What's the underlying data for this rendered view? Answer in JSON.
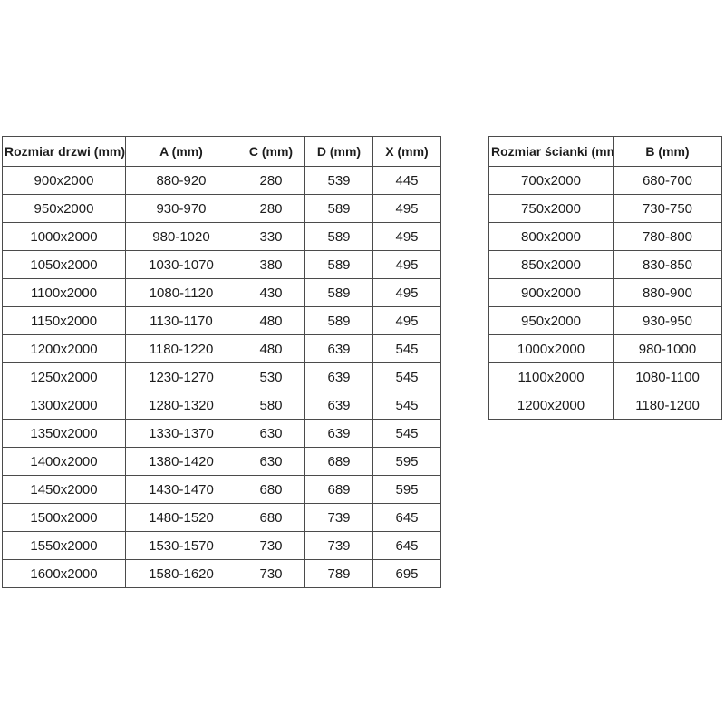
{
  "page": {
    "background": "#ffffff"
  },
  "colors": {
    "border": "#4b4b4b",
    "text": "#1c1c1c"
  },
  "chart_data": [
    {
      "type": "table",
      "name": "door-sizes",
      "title": "",
      "columns": [
        "Rozmiar drzwi (mm)",
        "A (mm)",
        "C (mm)",
        "D (mm)",
        "X (mm)"
      ],
      "rows": [
        [
          "900x2000",
          "880-920",
          "280",
          "539",
          "445"
        ],
        [
          "950x2000",
          "930-970",
          "280",
          "589",
          "495"
        ],
        [
          "1000x2000",
          "980-1020",
          "330",
          "589",
          "495"
        ],
        [
          "1050x2000",
          "1030-1070",
          "380",
          "589",
          "495"
        ],
        [
          "1100x2000",
          "1080-1120",
          "430",
          "589",
          "495"
        ],
        [
          "1150x2000",
          "1130-1170",
          "480",
          "589",
          "495"
        ],
        [
          "1200x2000",
          "1180-1220",
          "480",
          "639",
          "545"
        ],
        [
          "1250x2000",
          "1230-1270",
          "530",
          "639",
          "545"
        ],
        [
          "1300x2000",
          "1280-1320",
          "580",
          "639",
          "545"
        ],
        [
          "1350x2000",
          "1330-1370",
          "630",
          "639",
          "545"
        ],
        [
          "1400x2000",
          "1380-1420",
          "630",
          "689",
          "595"
        ],
        [
          "1450x2000",
          "1430-1470",
          "680",
          "689",
          "595"
        ],
        [
          "1500x2000",
          "1480-1520",
          "680",
          "739",
          "645"
        ],
        [
          "1550x2000",
          "1530-1570",
          "730",
          "739",
          "645"
        ],
        [
          "1600x2000",
          "1580-1620",
          "730",
          "789",
          "695"
        ]
      ]
    },
    {
      "type": "table",
      "name": "wall-sizes",
      "title": "",
      "columns": [
        "Rozmiar ścianki (mm)",
        "B (mm)"
      ],
      "rows": [
        [
          "700x2000",
          "680-700"
        ],
        [
          "750x2000",
          "730-750"
        ],
        [
          "800x2000",
          "780-800"
        ],
        [
          "850x2000",
          "830-850"
        ],
        [
          "900x2000",
          "880-900"
        ],
        [
          "950x2000",
          "930-950"
        ],
        [
          "1000x2000",
          "980-1000"
        ],
        [
          "1100x2000",
          "1080-1100"
        ],
        [
          "1200x2000",
          "1180-1200"
        ]
      ]
    }
  ]
}
